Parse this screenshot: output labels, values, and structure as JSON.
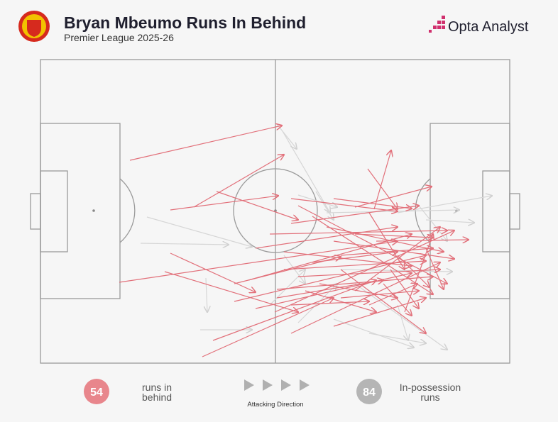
{
  "header": {
    "title": "Bryan Mbeumo Runs In Behind",
    "subtitle": "Premier League 2025-26",
    "brand": "Opta Analyst"
  },
  "legend": {
    "runs_in_behind": {
      "count": 54,
      "label": "runs in behind"
    },
    "attacking_direction": "Attacking Direction",
    "in_possession": {
      "count": 84,
      "label": "In-possession runs"
    }
  }
}
